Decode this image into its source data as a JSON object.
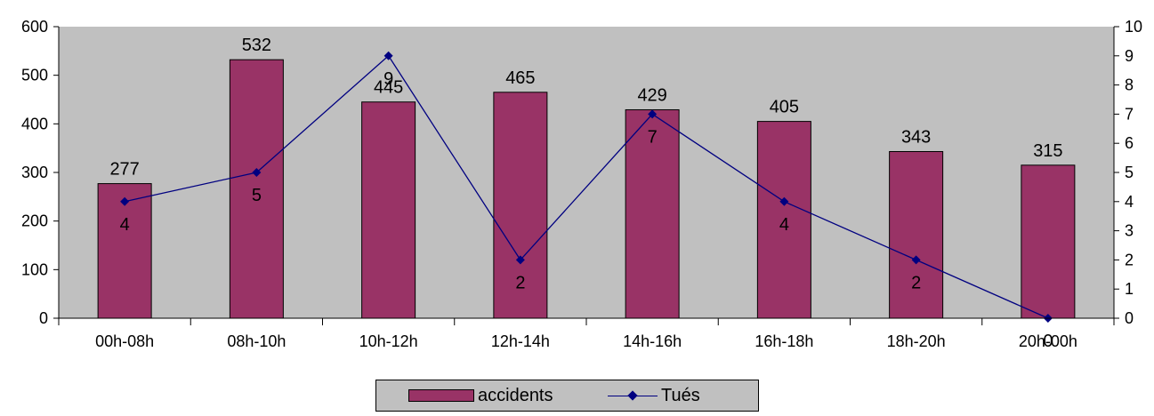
{
  "chart_data": {
    "type": "bar",
    "categories": [
      "00h-08h",
      "08h-10h",
      "10h-12h",
      "12h-14h",
      "14h-16h",
      "16h-18h",
      "18h-20h",
      "20h-00h"
    ],
    "series": [
      {
        "name": "accidents",
        "type": "bar",
        "axis": "left",
        "color": "#993366",
        "values": [
          277,
          532,
          445,
          465,
          429,
          405,
          343,
          315
        ]
      },
      {
        "name": "Tués",
        "type": "line",
        "axis": "right",
        "color": "#000080",
        "marker": "diamond",
        "values": [
          4,
          5,
          9,
          2,
          7,
          4,
          2,
          0
        ]
      }
    ],
    "ylim_left": [
      0,
      600
    ],
    "yticks_left": [
      "0",
      "100",
      "200",
      "300",
      "400",
      "500",
      "600"
    ],
    "ylim_right": [
      0,
      10
    ],
    "yticks_right": [
      "0",
      "1",
      "2",
      "3",
      "4",
      "5",
      "6",
      "7",
      "8",
      "9",
      "10"
    ],
    "grid": false,
    "plot_background": "#c0c0c0",
    "legend_position": "bottom"
  }
}
